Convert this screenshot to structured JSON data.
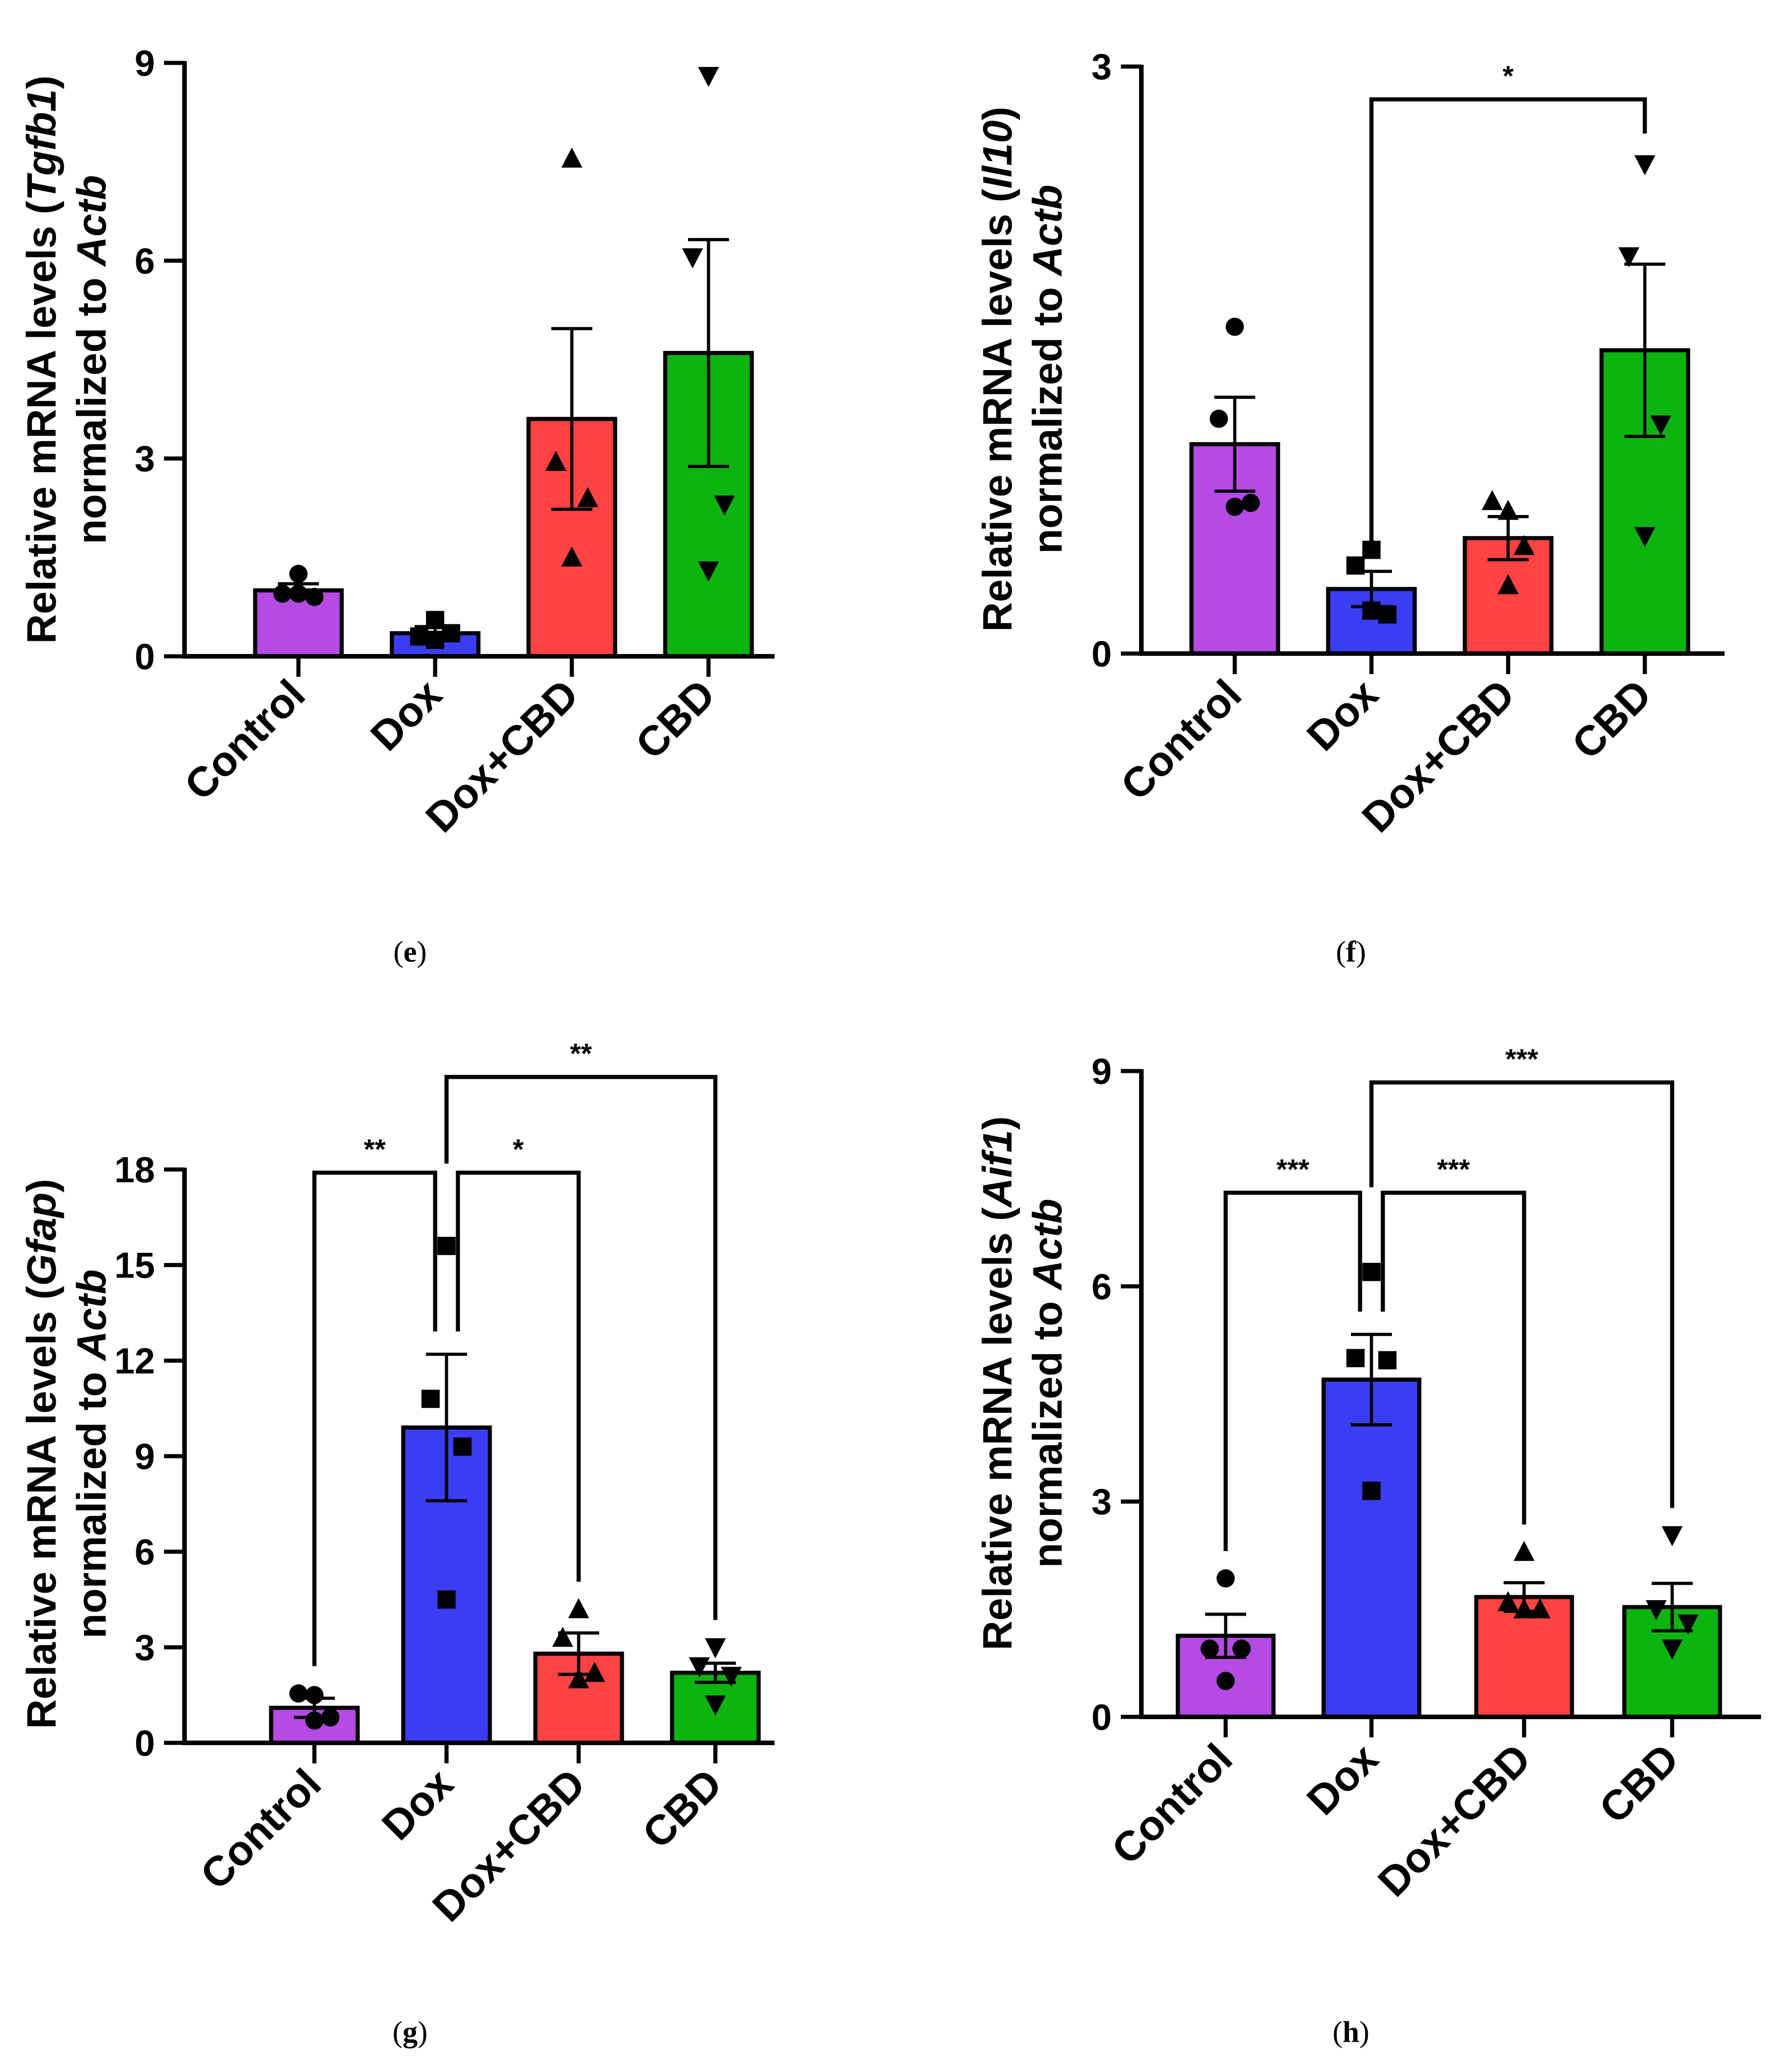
{
  "chart_data": [
    {
      "type": "bar",
      "panel_label": "(e)",
      "categories": [
        "Control",
        "Dox",
        "Dox+CBD",
        "CBD"
      ],
      "ylabel": {
        "line1": "Relative mRNA levels (",
        "gene": "Tgfb1",
        "line1_end": ")",
        "line2": "normalized to ",
        "ref": "Actb"
      },
      "ylim": [
        0,
        9
      ],
      "yticks": [
        "0",
        "3",
        "6",
        "9"
      ],
      "values": [
        1.0,
        0.35,
        3.6,
        4.6
      ],
      "sem": [
        0.1,
        0.1,
        1.37,
        1.72
      ],
      "points": [
        [
          1.25,
          0.95,
          0.9,
          0.95
        ],
        [
          0.25,
          0.3,
          0.35,
          0.55
        ],
        [
          7.55,
          2.95,
          2.4,
          1.5
        ],
        [
          8.8,
          6.05,
          2.3,
          1.3
        ]
      ],
      "colors": [
        "#b64ae4",
        "#3b3df2",
        "#ff4242",
        "#0cb40f"
      ],
      "markers": [
        "circle",
        "square",
        "triangle-up",
        "triangle-down"
      ],
      "significance": []
    },
    {
      "type": "bar",
      "panel_label": "(f)",
      "categories": [
        "Control",
        "Dox",
        "Dox+CBD",
        "CBD"
      ],
      "ylabel": {
        "line1": "Relative mRNA levels (",
        "gene": "Il10",
        "line1_end": ")",
        "line2": "normalized to ",
        "ref": "Actb"
      },
      "ylim": [
        0,
        3
      ],
      "yticks": [
        "0",
        "3"
      ],
      "values": [
        1.07,
        0.33,
        0.59,
        1.55
      ],
      "sem": [
        0.24,
        0.09,
        0.11,
        0.44
      ],
      "points": [
        [
          1.67,
          1.2,
          0.77,
          0.75
        ],
        [
          0.53,
          0.45,
          0.2,
          0.22
        ],
        [
          0.73,
          0.78,
          0.55,
          0.35
        ],
        [
          2.5,
          2.03,
          1.17,
          0.6
        ]
      ],
      "colors": [
        "#b64ae4",
        "#3b3df2",
        "#ff4242",
        "#0cb40f"
      ],
      "markers": [
        "circle",
        "square",
        "triangle-up",
        "triangle-down"
      ],
      "significance": [
        {
          "from": 1,
          "to": 3,
          "label": "*"
        }
      ]
    },
    {
      "type": "bar",
      "panel_label": "(g)",
      "categories": [
        "Control",
        "Dox",
        "Dox+CBD",
        "CBD"
      ],
      "ylabel": {
        "line1": "Relative mRNA levels (",
        "gene": "Gfap",
        "line1_end": ")",
        "line2": "normalized to ",
        "ref": "Actb"
      },
      "ylim": [
        0,
        18
      ],
      "yticks": [
        "0",
        "3",
        "6",
        "9",
        "12",
        "15",
        "18"
      ],
      "values": [
        1.1,
        9.9,
        2.8,
        2.2
      ],
      "sem": [
        0.3,
        2.3,
        0.65,
        0.3
      ],
      "points": [
        [
          1.5,
          1.55,
          0.8,
          0.7
        ],
        [
          15.6,
          10.8,
          9.3,
          4.5
        ],
        [
          4.2,
          3.3,
          2.2,
          2.0
        ],
        [
          3.0,
          2.4,
          2.1,
          1.2
        ]
      ],
      "colors": [
        "#b64ae4",
        "#3b3df2",
        "#ff4242",
        "#0cb40f"
      ],
      "markers": [
        "circle",
        "square",
        "triangle-up",
        "triangle-down"
      ],
      "significance": [
        {
          "from": 0,
          "to": 1,
          "label": "**"
        },
        {
          "from": 1,
          "to": 2,
          "label": "*"
        },
        {
          "from": 1,
          "to": 3,
          "label": "**"
        }
      ]
    },
    {
      "type": "bar",
      "panel_label": "(h)",
      "categories": [
        "Control",
        "Dox",
        "Dox+CBD",
        "CBD"
      ],
      "ylabel": {
        "line1": "Relative mRNA levels (",
        "gene": "Aif1",
        "line1_end": ")",
        "line2": "normalized to ",
        "ref": "Actb"
      },
      "ylim": [
        0,
        9
      ],
      "yticks": [
        "0",
        "3",
        "6",
        "9"
      ],
      "values": [
        1.13,
        4.7,
        1.67,
        1.53
      ],
      "sem": [
        0.3,
        0.63,
        0.2,
        0.33
      ],
      "points": [
        [
          1.93,
          0.95,
          0.95,
          0.5
        ],
        [
          6.2,
          5.0,
          4.97,
          3.15
        ],
        [
          2.3,
          1.6,
          1.5,
          1.5
        ],
        [
          2.53,
          1.5,
          1.3,
          0.95
        ]
      ],
      "colors": [
        "#b64ae4",
        "#3b3df2",
        "#ff4242",
        "#0cb40f"
      ],
      "markers": [
        "circle",
        "square",
        "triangle-up",
        "triangle-down"
      ],
      "significance": [
        {
          "from": 0,
          "to": 1,
          "label": "***"
        },
        {
          "from": 1,
          "to": 2,
          "label": "***"
        },
        {
          "from": 1,
          "to": 3,
          "label": "***"
        }
      ]
    }
  ]
}
